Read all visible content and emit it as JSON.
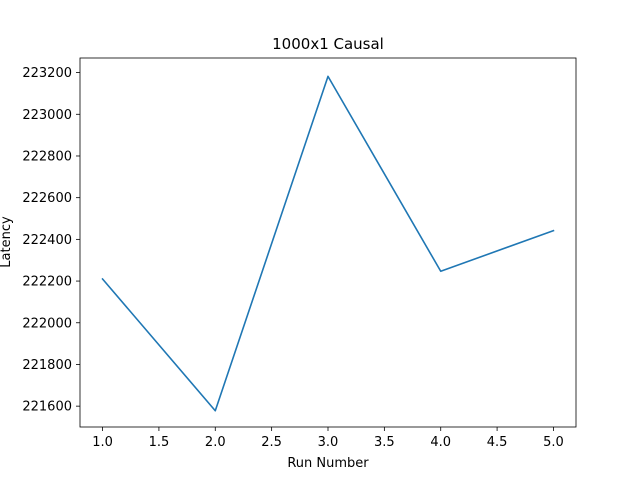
{
  "chart_data": {
    "type": "line",
    "title": "1000x1 Causal",
    "xlabel": "Run Number",
    "ylabel": "Latency",
    "xlim": [
      0.8,
      5.2
    ],
    "ylim": [
      221500,
      223270
    ],
    "xticks": [
      1.0,
      1.5,
      2.0,
      2.5,
      3.0,
      3.5,
      4.0,
      4.5,
      5.0
    ],
    "xtick_labels": [
      "1.0",
      "1.5",
      "2.0",
      "2.5",
      "3.0",
      "3.5",
      "4.0",
      "4.5",
      "5.0"
    ],
    "yticks": [
      221600,
      221800,
      222000,
      222200,
      222400,
      222600,
      222800,
      223000,
      223200
    ],
    "ytick_labels": [
      "221600",
      "221800",
      "222000",
      "222200",
      "222400",
      "222600",
      "222800",
      "223000",
      "223200"
    ],
    "grid": false,
    "series": [
      {
        "color": "#1f77b4",
        "x": [
          1,
          2,
          3,
          4,
          5
        ],
        "values": [
          222210,
          221578,
          223182,
          222247,
          222442
        ]
      }
    ]
  }
}
